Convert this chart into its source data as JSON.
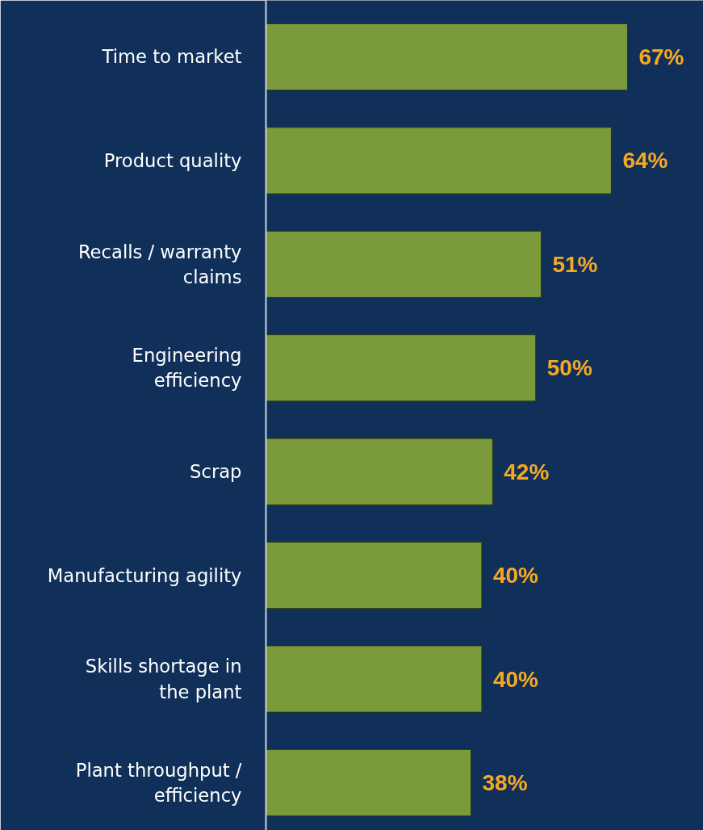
{
  "chart_data": {
    "type": "bar",
    "orientation": "horizontal",
    "categories": [
      "Time to market",
      "Product quality",
      "Recalls / warranty claims",
      "Engineering efficiency",
      "Scrap",
      "Manufacturing agility",
      "Skills shortage in the plant",
      "Plant throughput / efficiency"
    ],
    "values": [
      67,
      64,
      51,
      50,
      42,
      40,
      40,
      38
    ],
    "color": "#7b9a3c",
    "value_labels": [
      "67%",
      "64%",
      "51%",
      "50%",
      "42%",
      "40%",
      "40%",
      "38%"
    ],
    "tick_labels": "y",
    "grid": false
  }
}
